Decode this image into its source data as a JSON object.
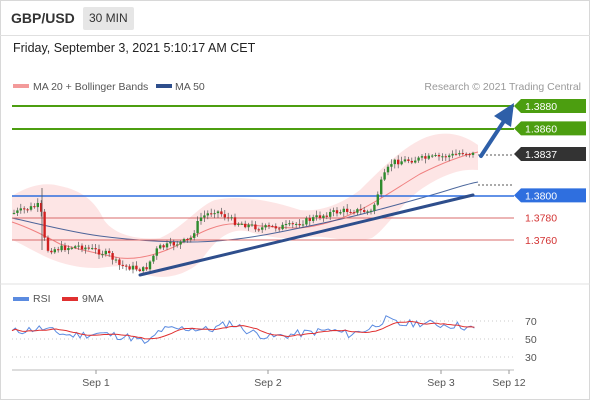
{
  "header": {
    "pair": "GBP/USD",
    "timeframe": "30 MIN"
  },
  "timestamp": "Friday, September 3, 2021 5:10:17 AM CET",
  "legend": {
    "ma_bollinger": "MA 20 + Bollinger Bands",
    "ma50": "MA 50",
    "credit": "Research © 2021 Trading Central"
  },
  "colors": {
    "resistance": "#4c9e10",
    "support": "#2f6fdf",
    "target": "#d33333",
    "current": "#333333",
    "bollinger": "#f39a9a",
    "ma50": "#2e4e8c",
    "rsi": "#5b8be0",
    "rsi_ma": "#e03030",
    "candle_up": "#2e8b2e",
    "candle_down": "#d02020"
  },
  "chart_data": [
    {
      "type": "candlestick",
      "ylim": [
        1.374,
        1.389
      ],
      "levels": [
        {
          "value": 1.388,
          "label": "1.3880",
          "kind": "resistance"
        },
        {
          "value": 1.386,
          "label": "1.3860",
          "kind": "resistance"
        },
        {
          "value": 1.3837,
          "label": "1.3837",
          "kind": "current"
        },
        {
          "value": 1.38,
          "label": "1.3800",
          "kind": "support"
        },
        {
          "value": 1.378,
          "label": "1.3780",
          "kind": "target"
        },
        {
          "value": 1.376,
          "label": "1.3760",
          "kind": "target"
        }
      ],
      "series": [
        {
          "name": "MA 20 + Bollinger Bands"
        },
        {
          "name": "MA 50"
        }
      ],
      "x_ticks": [
        "Sep 1",
        "Sep 2",
        "Sep 3",
        "Sep 12"
      ]
    },
    {
      "type": "line",
      "ylim": [
        20,
        80
      ],
      "y_ticks": [
        70,
        50,
        30
      ],
      "series": [
        {
          "name": "RSI"
        },
        {
          "name": "9MA"
        }
      ]
    }
  ]
}
